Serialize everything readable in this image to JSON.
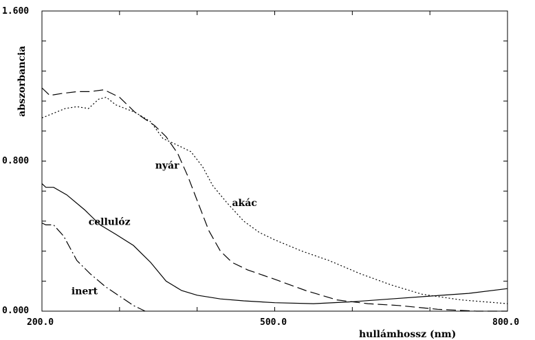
{
  "chart_data": {
    "type": "line",
    "title": "",
    "xlabel": "hullámhossz (nm)",
    "ylabel": "abszorbancia",
    "xlim": [
      200,
      800
    ],
    "ylim": [
      0,
      1.6
    ],
    "x_tick_labels": [
      "200.0",
      "500.0",
      "800.0"
    ],
    "y_tick_labels": [
      "0.000",
      "0.800",
      "1.600"
    ],
    "grid": false,
    "series": [
      {
        "name": "akác",
        "dash": "2,3",
        "points": [
          [
            200,
            1.03
          ],
          [
            212,
            1.05
          ],
          [
            230,
            1.08
          ],
          [
            245,
            1.09
          ],
          [
            260,
            1.08
          ],
          [
            273,
            1.13
          ],
          [
            283,
            1.14
          ],
          [
            295,
            1.1
          ],
          [
            320,
            1.06
          ],
          [
            340,
            1.01
          ],
          [
            356,
            0.92
          ],
          [
            372,
            0.89
          ],
          [
            392,
            0.85
          ],
          [
            407,
            0.77
          ],
          [
            420,
            0.67
          ],
          [
            438,
            0.58
          ],
          [
            460,
            0.48
          ],
          [
            480,
            0.42
          ],
          [
            500,
            0.38
          ],
          [
            535,
            0.32
          ],
          [
            570,
            0.27
          ],
          [
            610,
            0.2
          ],
          [
            650,
            0.14
          ],
          [
            690,
            0.09
          ],
          [
            740,
            0.06
          ],
          [
            800,
            0.04
          ]
        ]
      },
      {
        "name": "nyár",
        "dash": "14,6",
        "points": [
          [
            200,
            1.19
          ],
          [
            210,
            1.15
          ],
          [
            225,
            1.16
          ],
          [
            245,
            1.17
          ],
          [
            262,
            1.17
          ],
          [
            280,
            1.18
          ],
          [
            300,
            1.14
          ],
          [
            320,
            1.06
          ],
          [
            345,
            0.99
          ],
          [
            360,
            0.93
          ],
          [
            375,
            0.84
          ],
          [
            388,
            0.72
          ],
          [
            400,
            0.59
          ],
          [
            415,
            0.43
          ],
          [
            430,
            0.32
          ],
          [
            445,
            0.26
          ],
          [
            465,
            0.22
          ],
          [
            500,
            0.17
          ],
          [
            540,
            0.11
          ],
          [
            580,
            0.06
          ],
          [
            620,
            0.04
          ],
          [
            660,
            0.03
          ],
          [
            710,
            0.01
          ],
          [
            760,
            0.0
          ],
          [
            800,
            0.0
          ]
        ]
      },
      {
        "name": "cellulóz",
        "dash": "",
        "points": [
          [
            200,
            0.68
          ],
          [
            205,
            0.66
          ],
          [
            215,
            0.66
          ],
          [
            232,
            0.62
          ],
          [
            255,
            0.54
          ],
          [
            275,
            0.46
          ],
          [
            295,
            0.41
          ],
          [
            318,
            0.35
          ],
          [
            340,
            0.26
          ],
          [
            360,
            0.16
          ],
          [
            380,
            0.11
          ],
          [
            400,
            0.085
          ],
          [
            430,
            0.065
          ],
          [
            460,
            0.055
          ],
          [
            500,
            0.045
          ],
          [
            550,
            0.04
          ],
          [
            600,
            0.05
          ],
          [
            650,
            0.065
          ],
          [
            700,
            0.08
          ],
          [
            750,
            0.095
          ],
          [
            800,
            0.12
          ]
        ]
      },
      {
        "name": "inert",
        "dash": "14,4,2,4",
        "points": [
          [
            200,
            0.47
          ],
          [
            205,
            0.46
          ],
          [
            215,
            0.46
          ],
          [
            228,
            0.4
          ],
          [
            245,
            0.27
          ],
          [
            262,
            0.2
          ],
          [
            282,
            0.13
          ],
          [
            300,
            0.08
          ],
          [
            318,
            0.03
          ],
          [
            333,
            0.0
          ]
        ]
      }
    ],
    "annotations": [
      {
        "text": "akác",
        "x": 445,
        "y": 0.56
      },
      {
        "text": "nyár",
        "x": 346,
        "y": 0.76
      },
      {
        "text": "cellulóz",
        "x": 260,
        "y": 0.46
      },
      {
        "text": "inert",
        "x": 238,
        "y": 0.09
      }
    ]
  }
}
